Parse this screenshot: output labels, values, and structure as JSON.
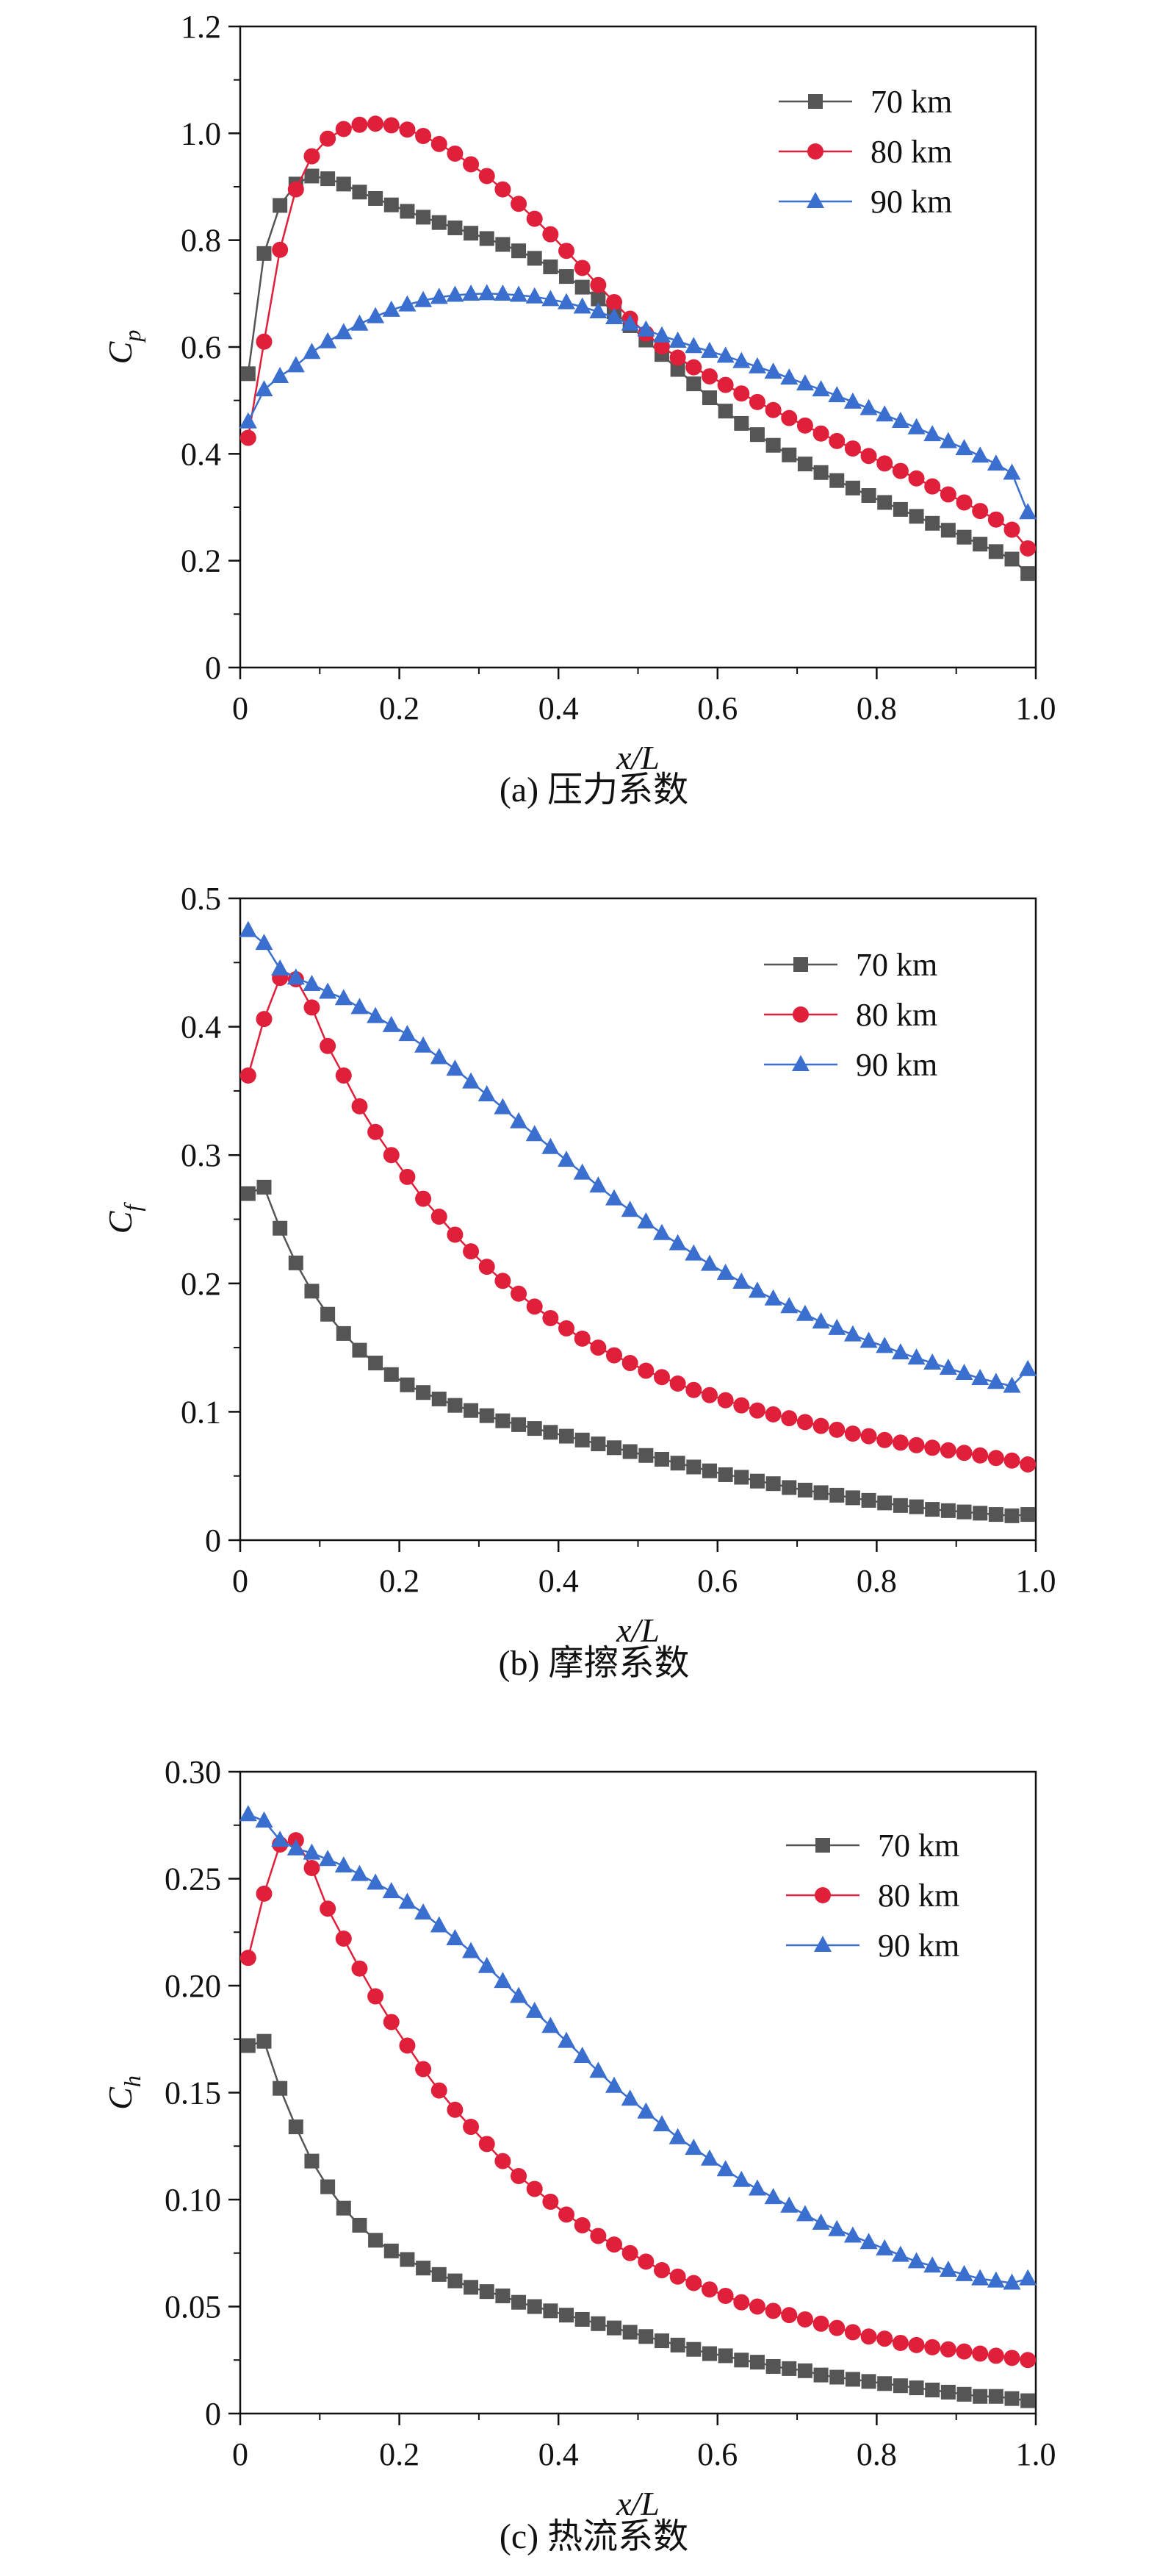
{
  "figure": {
    "series_styles": [
      {
        "name": "70 km",
        "color": "#555555",
        "marker": "square"
      },
      {
        "name": "80 km",
        "color": "#e0203a",
        "marker": "circle"
      },
      {
        "name": "90 km",
        "color": "#3a6fd0",
        "marker": "triangle"
      }
    ]
  },
  "chart_data": [
    {
      "type": "line",
      "caption": "(a) 压力系数",
      "xlabel": "x/L",
      "ylabel_main": "C",
      "ylabel_sub": "p",
      "xlim": [
        0,
        1.0
      ],
      "ylim": [
        0,
        1.2
      ],
      "xticks": [
        "0",
        "0.2",
        "0.4",
        "0.6",
        "0.8",
        "1.0"
      ],
      "yticks": [
        "0",
        "0.2",
        "0.4",
        "0.6",
        "0.8",
        "1.0",
        "1.2"
      ],
      "ytick_values": [
        0,
        0.2,
        0.4,
        0.6,
        0.8,
        1.0,
        1.2
      ],
      "legend": [
        "70 km",
        "80 km",
        "90 km"
      ],
      "legend_position": "top-right",
      "x": [
        0.01,
        0.03,
        0.05,
        0.07,
        0.09,
        0.11,
        0.13,
        0.15,
        0.17,
        0.19,
        0.21,
        0.23,
        0.25,
        0.27,
        0.29,
        0.31,
        0.33,
        0.35,
        0.37,
        0.39,
        0.41,
        0.43,
        0.45,
        0.47,
        0.49,
        0.51,
        0.53,
        0.55,
        0.57,
        0.59,
        0.61,
        0.63,
        0.65,
        0.67,
        0.69,
        0.71,
        0.73,
        0.75,
        0.77,
        0.79,
        0.81,
        0.83,
        0.85,
        0.87,
        0.89,
        0.91,
        0.93,
        0.95,
        0.97,
        0.99
      ],
      "series": [
        {
          "name": "70 km",
          "values": [
            0.55,
            0.775,
            0.865,
            0.905,
            0.92,
            0.915,
            0.905,
            0.89,
            0.878,
            0.866,
            0.854,
            0.843,
            0.833,
            0.823,
            0.813,
            0.803,
            0.792,
            0.78,
            0.766,
            0.75,
            0.732,
            0.712,
            0.69,
            0.666,
            0.64,
            0.613,
            0.586,
            0.558,
            0.531,
            0.505,
            0.48,
            0.457,
            0.436,
            0.416,
            0.398,
            0.381,
            0.365,
            0.35,
            0.336,
            0.322,
            0.309,
            0.296,
            0.283,
            0.27,
            0.257,
            0.244,
            0.231,
            0.217,
            0.203,
            0.176
          ]
        },
        {
          "name": "80 km",
          "values": [
            0.43,
            0.61,
            0.782,
            0.895,
            0.957,
            0.99,
            1.008,
            1.016,
            1.018,
            1.015,
            1.007,
            0.995,
            0.98,
            0.962,
            0.942,
            0.92,
            0.895,
            0.868,
            0.84,
            0.811,
            0.78,
            0.748,
            0.716,
            0.684,
            0.653,
            0.625,
            0.601,
            0.58,
            0.562,
            0.545,
            0.529,
            0.513,
            0.497,
            0.482,
            0.467,
            0.453,
            0.438,
            0.424,
            0.41,
            0.396,
            0.382,
            0.368,
            0.354,
            0.339,
            0.324,
            0.309,
            0.293,
            0.277,
            0.258,
            0.223
          ]
        },
        {
          "name": "90 km",
          "values": [
            0.46,
            0.52,
            0.545,
            0.565,
            0.59,
            0.61,
            0.627,
            0.643,
            0.657,
            0.669,
            0.679,
            0.687,
            0.693,
            0.697,
            0.699,
            0.7,
            0.699,
            0.697,
            0.694,
            0.689,
            0.683,
            0.675,
            0.666,
            0.655,
            0.643,
            0.632,
            0.621,
            0.611,
            0.601,
            0.592,
            0.583,
            0.573,
            0.563,
            0.553,
            0.542,
            0.531,
            0.52,
            0.509,
            0.497,
            0.485,
            0.473,
            0.461,
            0.449,
            0.436,
            0.423,
            0.41,
            0.396,
            0.381,
            0.364,
            0.29
          ]
        }
      ]
    },
    {
      "type": "line",
      "caption": "(b) 摩擦系数",
      "xlabel": "x/L",
      "ylabel_main": "C",
      "ylabel_sub": "f",
      "xlim": [
        0,
        1.0
      ],
      "ylim": [
        0,
        0.5
      ],
      "xticks": [
        "0",
        "0.2",
        "0.4",
        "0.6",
        "0.8",
        "1.0"
      ],
      "yticks": [
        "0",
        "0.1",
        "0.2",
        "0.3",
        "0.4",
        "0.5"
      ],
      "ytick_values": [
        0,
        0.1,
        0.2,
        0.3,
        0.4,
        0.5
      ],
      "legend": [
        "70 km",
        "80 km",
        "90 km"
      ],
      "legend_position": "top-right",
      "x": [
        0.01,
        0.03,
        0.05,
        0.07,
        0.09,
        0.11,
        0.13,
        0.15,
        0.17,
        0.19,
        0.21,
        0.23,
        0.25,
        0.27,
        0.29,
        0.31,
        0.33,
        0.35,
        0.37,
        0.39,
        0.41,
        0.43,
        0.45,
        0.47,
        0.49,
        0.51,
        0.53,
        0.55,
        0.57,
        0.59,
        0.61,
        0.63,
        0.65,
        0.67,
        0.69,
        0.71,
        0.73,
        0.75,
        0.77,
        0.79,
        0.81,
        0.83,
        0.85,
        0.87,
        0.89,
        0.91,
        0.93,
        0.95,
        0.97,
        0.99
      ],
      "series": [
        {
          "name": "70 km",
          "values": [
            0.27,
            0.275,
            0.243,
            0.216,
            0.194,
            0.176,
            0.161,
            0.148,
            0.138,
            0.129,
            0.121,
            0.115,
            0.11,
            0.105,
            0.101,
            0.097,
            0.093,
            0.09,
            0.087,
            0.084,
            0.081,
            0.078,
            0.075,
            0.072,
            0.069,
            0.066,
            0.063,
            0.06,
            0.057,
            0.054,
            0.051,
            0.049,
            0.046,
            0.044,
            0.041,
            0.039,
            0.037,
            0.035,
            0.033,
            0.031,
            0.029,
            0.027,
            0.026,
            0.024,
            0.023,
            0.022,
            0.021,
            0.02,
            0.019,
            0.02
          ]
        },
        {
          "name": "80 km",
          "values": [
            0.362,
            0.406,
            0.438,
            0.437,
            0.415,
            0.385,
            0.362,
            0.338,
            0.318,
            0.3,
            0.283,
            0.266,
            0.252,
            0.238,
            0.225,
            0.213,
            0.202,
            0.192,
            0.182,
            0.173,
            0.165,
            0.157,
            0.15,
            0.144,
            0.138,
            0.132,
            0.127,
            0.122,
            0.117,
            0.113,
            0.109,
            0.105,
            0.101,
            0.098,
            0.095,
            0.092,
            0.089,
            0.086,
            0.083,
            0.081,
            0.078,
            0.076,
            0.074,
            0.072,
            0.07,
            0.068,
            0.066,
            0.064,
            0.062,
            0.059
          ]
        },
        {
          "name": "90 km",
          "values": [
            0.475,
            0.465,
            0.445,
            0.438,
            0.433,
            0.427,
            0.422,
            0.415,
            0.408,
            0.401,
            0.394,
            0.385,
            0.376,
            0.367,
            0.357,
            0.347,
            0.337,
            0.326,
            0.316,
            0.306,
            0.296,
            0.286,
            0.276,
            0.266,
            0.257,
            0.248,
            0.239,
            0.231,
            0.223,
            0.215,
            0.208,
            0.201,
            0.194,
            0.188,
            0.182,
            0.176,
            0.17,
            0.165,
            0.16,
            0.155,
            0.151,
            0.146,
            0.142,
            0.138,
            0.134,
            0.13,
            0.126,
            0.123,
            0.12,
            0.133
          ]
        }
      ]
    },
    {
      "type": "line",
      "caption": "(c) 热流系数",
      "xlabel": "x/L",
      "ylabel_main": "C",
      "ylabel_sub": "h",
      "xlim": [
        0,
        1.0
      ],
      "ylim": [
        0,
        0.3
      ],
      "xticks": [
        "0",
        "0.2",
        "0.4",
        "0.6",
        "0.8",
        "1.0"
      ],
      "yticks": [
        "0",
        "0.05",
        "0.10",
        "0.15",
        "0.20",
        "0.25",
        "0.30"
      ],
      "ytick_values": [
        0,
        0.05,
        0.1,
        0.15,
        0.2,
        0.25,
        0.3
      ],
      "legend": [
        "70 km",
        "80 km",
        "90 km"
      ],
      "legend_position": "top-right",
      "x": [
        0.01,
        0.03,
        0.05,
        0.07,
        0.09,
        0.11,
        0.13,
        0.15,
        0.17,
        0.19,
        0.21,
        0.23,
        0.25,
        0.27,
        0.29,
        0.31,
        0.33,
        0.35,
        0.37,
        0.39,
        0.41,
        0.43,
        0.45,
        0.47,
        0.49,
        0.51,
        0.53,
        0.55,
        0.57,
        0.59,
        0.61,
        0.63,
        0.65,
        0.67,
        0.69,
        0.71,
        0.73,
        0.75,
        0.77,
        0.79,
        0.81,
        0.83,
        0.85,
        0.87,
        0.89,
        0.91,
        0.93,
        0.95,
        0.97,
        0.99
      ],
      "series": [
        {
          "name": "70 km",
          "values": [
            0.172,
            0.174,
            0.152,
            0.134,
            0.118,
            0.106,
            0.096,
            0.088,
            0.081,
            0.076,
            0.072,
            0.068,
            0.065,
            0.062,
            0.059,
            0.057,
            0.055,
            0.052,
            0.05,
            0.048,
            0.046,
            0.044,
            0.042,
            0.04,
            0.038,
            0.036,
            0.034,
            0.032,
            0.03,
            0.028,
            0.027,
            0.025,
            0.024,
            0.022,
            0.021,
            0.02,
            0.018,
            0.017,
            0.016,
            0.015,
            0.014,
            0.013,
            0.012,
            0.011,
            0.01,
            0.009,
            0.008,
            0.008,
            0.007,
            0.006
          ]
        },
        {
          "name": "80 km",
          "values": [
            0.213,
            0.243,
            0.266,
            0.268,
            0.255,
            0.236,
            0.222,
            0.208,
            0.195,
            0.183,
            0.172,
            0.161,
            0.151,
            0.142,
            0.134,
            0.126,
            0.118,
            0.111,
            0.105,
            0.099,
            0.093,
            0.088,
            0.083,
            0.079,
            0.075,
            0.071,
            0.067,
            0.064,
            0.061,
            0.058,
            0.055,
            0.052,
            0.05,
            0.048,
            0.046,
            0.044,
            0.042,
            0.04,
            0.038,
            0.036,
            0.035,
            0.033,
            0.032,
            0.031,
            0.03,
            0.029,
            0.028,
            0.027,
            0.026,
            0.025
          ]
        },
        {
          "name": "90 km",
          "values": [
            0.28,
            0.277,
            0.268,
            0.264,
            0.262,
            0.259,
            0.256,
            0.252,
            0.248,
            0.244,
            0.239,
            0.234,
            0.228,
            0.222,
            0.216,
            0.209,
            0.202,
            0.195,
            0.188,
            0.181,
            0.174,
            0.167,
            0.16,
            0.153,
            0.147,
            0.141,
            0.135,
            0.129,
            0.124,
            0.119,
            0.114,
            0.109,
            0.105,
            0.101,
            0.097,
            0.093,
            0.089,
            0.086,
            0.083,
            0.08,
            0.077,
            0.074,
            0.071,
            0.069,
            0.067,
            0.065,
            0.063,
            0.062,
            0.061,
            0.063
          ]
        }
      ]
    }
  ]
}
